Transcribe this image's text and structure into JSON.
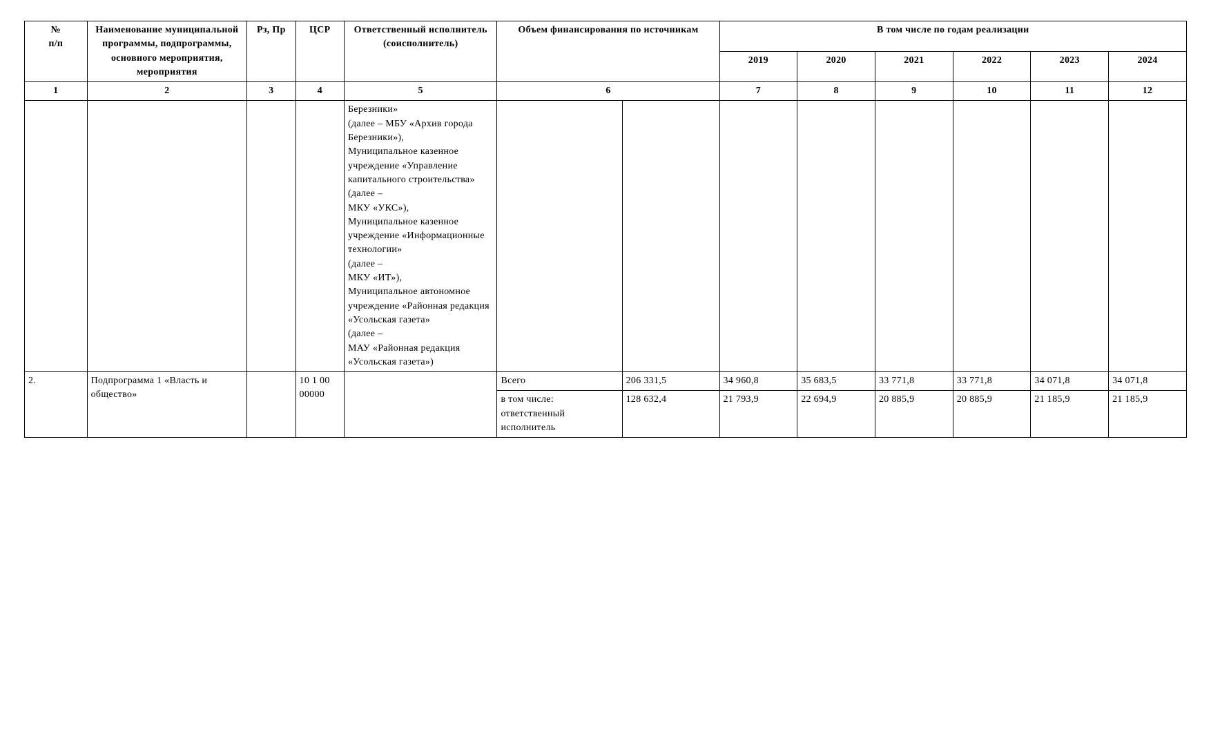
{
  "header": {
    "col1": "№\nп/п",
    "col2": "Наименование муниципальной программы, подпрограммы, основного мероприятия, мероприятия",
    "col3": "Рз, Пр",
    "col4": "ЦСР",
    "col5": "Ответственный исполнитель (соисполнитель)",
    "col6": "Объем финансирования по источникам",
    "col7_group": "В том числе по годам реализации",
    "years": [
      "2019",
      "2020",
      "2021",
      "2022",
      "2023",
      "2024"
    ]
  },
  "colnums": [
    "1",
    "2",
    "3",
    "4",
    "5",
    "6",
    "7",
    "8",
    "9",
    "10",
    "11",
    "12"
  ],
  "body_row1": {
    "col1": "",
    "col2": "",
    "col3": "",
    "col4": "",
    "col5": "Березники»\n(далее – МБУ «Архив города Березники»),\nМуниципальное казенное учреждение «Управление капитального строительства»\n(далее –\nМКУ «УКС»),\nМуниципальное казенное учреждение «Информационные технологии»\n(далее –\nМКУ «ИТ»),\nМуниципальное автономное учреждение «Районная редакция «Усольская газета»\n(далее –\nМАУ «Районная редакция «Усольская газета»)",
    "col6a": "",
    "col6b": "",
    "y": [
      "",
      "",
      "",
      "",
      "",
      ""
    ]
  },
  "row2": {
    "idx": "2.",
    "name": "Подпрограмма 1 «Власть и общество»",
    "rz": "",
    "csr": "10 1 00 00000",
    "exec": "",
    "line1": {
      "src": "Всего",
      "amt": "206 331,5",
      "y": [
        "34 960,8",
        "35 683,5",
        "33 771,8",
        "33 771,8",
        "34 071,8",
        "34 071,8"
      ]
    },
    "line2": {
      "src": "в том числе: ответственный исполнитель",
      "amt": "128 632,4",
      "y": [
        "21 793,9",
        "22 694,9",
        "20 885,9",
        "20 885,9",
        "21 185,9",
        "21 185,9"
      ]
    }
  }
}
